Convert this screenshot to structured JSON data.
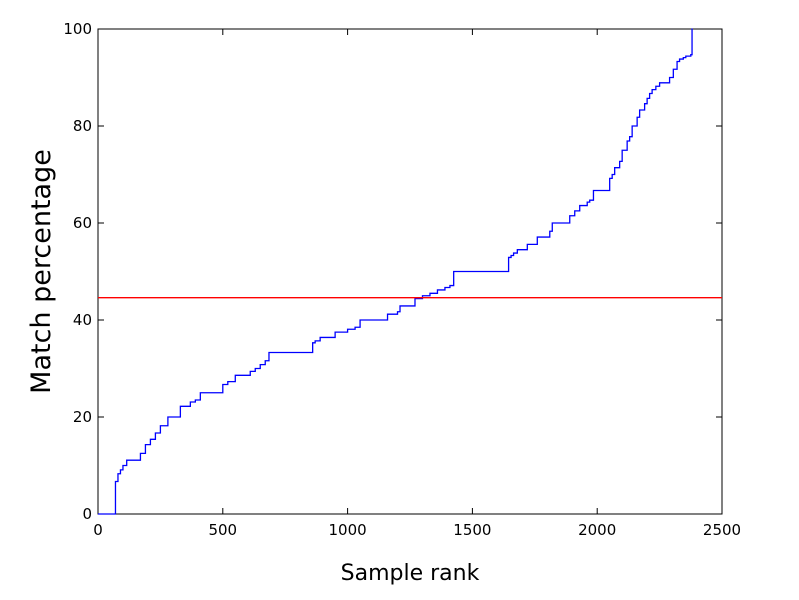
{
  "chart_data": {
    "type": "line",
    "title": "",
    "xlabel": "Sample rank",
    "ylabel": "Match percentage",
    "xlim": [
      0,
      2500
    ],
    "ylim": [
      0,
      100
    ],
    "x_ticks": [
      0,
      500,
      1000,
      1500,
      2000,
      2500
    ],
    "y_ticks": [
      0,
      20,
      40,
      60,
      80,
      100
    ],
    "grid": false,
    "series": [
      {
        "color": "#0000ff",
        "step": true,
        "points": [
          [
            0,
            0
          ],
          [
            70,
            0
          ],
          [
            70,
            6.7
          ],
          [
            80,
            8.3
          ],
          [
            90,
            9.1
          ],
          [
            100,
            10
          ],
          [
            115,
            11.1
          ],
          [
            170,
            12.5
          ],
          [
            190,
            14.3
          ],
          [
            210,
            15.4
          ],
          [
            230,
            16.7
          ],
          [
            250,
            18.2
          ],
          [
            280,
            20
          ],
          [
            330,
            22.2
          ],
          [
            370,
            23.1
          ],
          [
            390,
            23.5
          ],
          [
            410,
            25
          ],
          [
            500,
            26.7
          ],
          [
            520,
            27.3
          ],
          [
            550,
            28.6
          ],
          [
            610,
            29.4
          ],
          [
            630,
            30
          ],
          [
            650,
            30.8
          ],
          [
            670,
            31.6
          ],
          [
            685,
            33.3
          ],
          [
            860,
            35.3
          ],
          [
            870,
            35.7
          ],
          [
            890,
            36.4
          ],
          [
            950,
            37.5
          ],
          [
            1000,
            38.1
          ],
          [
            1030,
            38.5
          ],
          [
            1050,
            40
          ],
          [
            1160,
            41.2
          ],
          [
            1200,
            41.7
          ],
          [
            1210,
            42.9
          ],
          [
            1270,
            44.4
          ],
          [
            1300,
            45
          ],
          [
            1330,
            45.5
          ],
          [
            1360,
            46.2
          ],
          [
            1390,
            46.7
          ],
          [
            1410,
            47.1
          ],
          [
            1425,
            50
          ],
          [
            1645,
            52.9
          ],
          [
            1655,
            53.3
          ],
          [
            1665,
            53.8
          ],
          [
            1680,
            54.5
          ],
          [
            1720,
            55.6
          ],
          [
            1760,
            57.1
          ],
          [
            1810,
            58.3
          ],
          [
            1820,
            60
          ],
          [
            1890,
            61.5
          ],
          [
            1910,
            62.5
          ],
          [
            1930,
            63.6
          ],
          [
            1960,
            64.3
          ],
          [
            1970,
            64.7
          ],
          [
            1985,
            66.7
          ],
          [
            2050,
            69.2
          ],
          [
            2060,
            70
          ],
          [
            2070,
            71.4
          ],
          [
            2090,
            72.7
          ],
          [
            2100,
            75
          ],
          [
            2120,
            76.9
          ],
          [
            2130,
            77.8
          ],
          [
            2140,
            80
          ],
          [
            2160,
            81.8
          ],
          [
            2170,
            83.3
          ],
          [
            2190,
            84.6
          ],
          [
            2200,
            85.7
          ],
          [
            2210,
            86.7
          ],
          [
            2220,
            87.5
          ],
          [
            2235,
            88.2
          ],
          [
            2250,
            88.9
          ],
          [
            2290,
            90
          ],
          [
            2305,
            91.7
          ],
          [
            2320,
            93.3
          ],
          [
            2330,
            93.8
          ],
          [
            2345,
            94.1
          ],
          [
            2355,
            94.4
          ],
          [
            2375,
            94.7
          ],
          [
            2380,
            100
          ],
          [
            2382,
            100
          ]
        ]
      }
    ],
    "reference_lines": [
      {
        "orientation": "horizontal",
        "y": 44.6,
        "color": "#ff0000"
      }
    ]
  }
}
